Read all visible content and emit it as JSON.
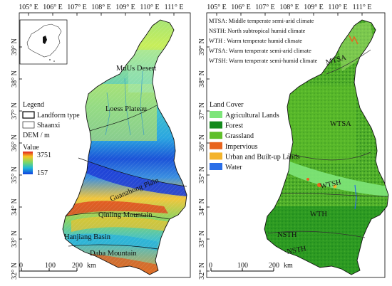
{
  "top_ticks": [
    "105° E",
    "106° E",
    "107° E",
    "108° E",
    "109° E",
    "110° E",
    "111° E"
  ],
  "lat_ticks": [
    "39° N",
    "38° N",
    "37° N",
    "36° N",
    "35° N",
    "34° N",
    "33° N",
    "32° N"
  ],
  "left_panel": {
    "legend_title": "Legend",
    "legend_landform": "Landform type",
    "legend_shaanxi": "Shaanxi",
    "dem_title": "DEM / m",
    "value_label": "Value",
    "dem_max": "3751",
    "dem_min": "157",
    "regions": [
      "MuUs Desert",
      "Loess Plateau",
      "Guanzhong Plain",
      "Qinling Mountain",
      "Hanjiang Basin",
      "Daba Mountain"
    ],
    "scale_ticks": [
      "0",
      "100",
      "200"
    ],
    "scale_unit": "km",
    "colors": {
      "high": "#e02020",
      "mid_high": "#f6c623",
      "mid": "#79d868",
      "mid_low": "#21b8d8",
      "low": "#1040e0"
    }
  },
  "right_panel": {
    "climate_legend": [
      "MTSA: Middle temperate semi-arid climate",
      "NSTH: North subtropical humid climate",
      "WTH : Warm temperate humid climate",
      "WTSA: Warm temperate semi-arid climate",
      "WTSH: Warm temperate semi-humid climate"
    ],
    "landcover_title": "Land Cover",
    "landcover": [
      {
        "label": "Agricultural Lands",
        "color": "#7ee57a"
      },
      {
        "label": "Forest",
        "color": "#138a1c"
      },
      {
        "label": "Grassland",
        "color": "#5fbf2a"
      },
      {
        "label": "Impervious",
        "color": "#e8641e"
      },
      {
        "label": "Urban and Built-up Lands",
        "color": "#f4b42c"
      },
      {
        "label": "Water",
        "color": "#2a6ee8"
      }
    ],
    "zones": [
      "MTSA",
      "WTSA",
      "WTSH",
      "WTH",
      "NSTH",
      "NSTH"
    ],
    "scale_ticks": [
      "0",
      "100",
      "200"
    ],
    "scale_unit": "km"
  }
}
